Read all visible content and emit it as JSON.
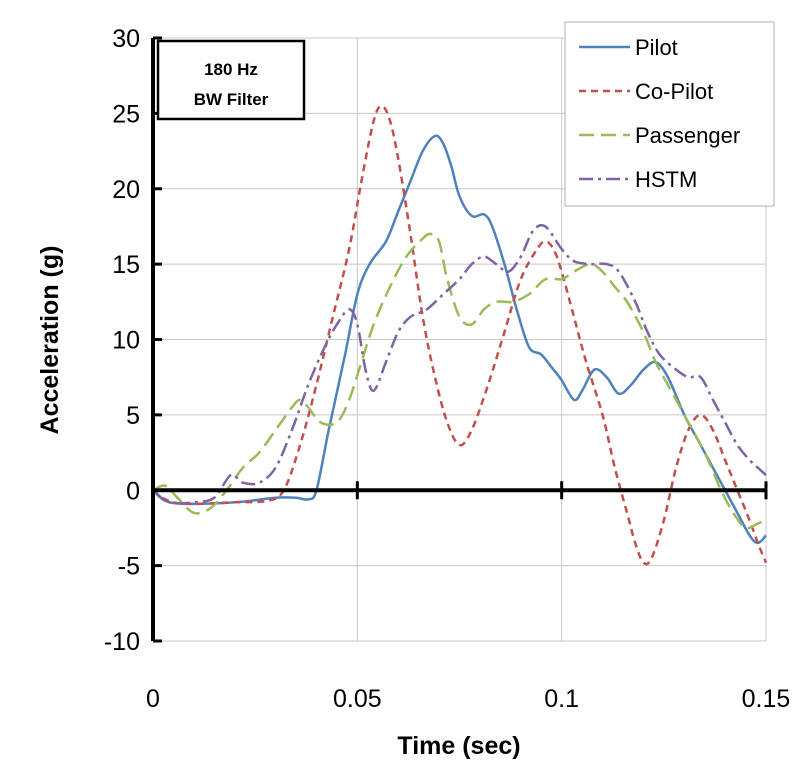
{
  "chart_data": {
    "type": "line",
    "title": "",
    "xlabel": "Time (sec)",
    "ylabel": "Acceleration (g)",
    "xlim": [
      0,
      0.15
    ],
    "ylim": [
      -10,
      30
    ],
    "x_ticks": [
      0,
      0.05,
      0.1,
      0.15
    ],
    "x_tick_labels": [
      "0",
      "0.05",
      "0.1",
      "0.15"
    ],
    "y_ticks": [
      -10,
      -5,
      0,
      5,
      10,
      15,
      20,
      25,
      30
    ],
    "y_tick_labels": [
      "-10",
      "-5",
      "0",
      "5",
      "10",
      "15",
      "20",
      "25",
      "30"
    ],
    "grid": true,
    "legend_position": "top-right",
    "annotation": {
      "lines": [
        "180 Hz",
        "BW Filter"
      ]
    },
    "series": [
      {
        "name": "Pilot",
        "color": "#4f81bd",
        "dash": "solid",
        "points": [
          [
            0,
            0
          ],
          [
            0.003,
            -0.7
          ],
          [
            0.008,
            -0.9
          ],
          [
            0.02,
            -0.8
          ],
          [
            0.03,
            -0.5
          ],
          [
            0.035,
            -0.5
          ],
          [
            0.038,
            -0.6
          ],
          [
            0.04,
            0
          ],
          [
            0.043,
            4
          ],
          [
            0.047,
            9
          ],
          [
            0.05,
            13
          ],
          [
            0.053,
            15
          ],
          [
            0.057,
            16.5
          ],
          [
            0.06,
            18.5
          ],
          [
            0.063,
            20.5
          ],
          [
            0.066,
            22.5
          ],
          [
            0.069,
            23.5
          ],
          [
            0.071,
            23
          ],
          [
            0.073,
            21.5
          ],
          [
            0.075,
            19.5
          ],
          [
            0.078,
            18.2
          ],
          [
            0.081,
            18.3
          ],
          [
            0.083,
            17.5
          ],
          [
            0.086,
            15
          ],
          [
            0.089,
            12
          ],
          [
            0.092,
            9.5
          ],
          [
            0.095,
            9
          ],
          [
            0.098,
            8
          ],
          [
            0.1,
            7.3
          ],
          [
            0.103,
            6
          ],
          [
            0.105,
            6.6
          ],
          [
            0.108,
            8
          ],
          [
            0.111,
            7.5
          ],
          [
            0.114,
            6.4
          ],
          [
            0.117,
            7
          ],
          [
            0.12,
            8
          ],
          [
            0.123,
            8.5
          ],
          [
            0.126,
            7.5
          ],
          [
            0.13,
            5
          ],
          [
            0.133,
            3.5
          ],
          [
            0.136,
            2
          ],
          [
            0.14,
            0
          ],
          [
            0.143,
            -1.5
          ],
          [
            0.146,
            -3
          ],
          [
            0.148,
            -3.5
          ],
          [
            0.15,
            -3
          ]
        ]
      },
      {
        "name": "Co-Pilot",
        "color": "#c0504d",
        "dash": "dashed",
        "points": [
          [
            0,
            0
          ],
          [
            0.003,
            -0.6
          ],
          [
            0.008,
            -0.9
          ],
          [
            0.02,
            -0.8
          ],
          [
            0.028,
            -0.7
          ],
          [
            0.032,
            0
          ],
          [
            0.036,
            3
          ],
          [
            0.04,
            7
          ],
          [
            0.044,
            11.5
          ],
          [
            0.048,
            16
          ],
          [
            0.051,
            20.5
          ],
          [
            0.054,
            24.5
          ],
          [
            0.056,
            25.5
          ],
          [
            0.058,
            24.5
          ],
          [
            0.06,
            22
          ],
          [
            0.063,
            17
          ],
          [
            0.066,
            11.5
          ],
          [
            0.069,
            7.5
          ],
          [
            0.072,
            4.5
          ],
          [
            0.075,
            3
          ],
          [
            0.078,
            4
          ],
          [
            0.082,
            7
          ],
          [
            0.086,
            10.5
          ],
          [
            0.09,
            14
          ],
          [
            0.094,
            16
          ],
          [
            0.096,
            16.5
          ],
          [
            0.098,
            16
          ],
          [
            0.1,
            14.5
          ],
          [
            0.103,
            11.5
          ],
          [
            0.106,
            8.5
          ],
          [
            0.11,
            5
          ],
          [
            0.113,
            1.5
          ],
          [
            0.116,
            -1.5
          ],
          [
            0.118,
            -3.5
          ],
          [
            0.12,
            -4.8
          ],
          [
            0.122,
            -4.5
          ],
          [
            0.125,
            -2
          ],
          [
            0.128,
            1.5
          ],
          [
            0.131,
            4
          ],
          [
            0.134,
            5
          ],
          [
            0.137,
            4
          ],
          [
            0.14,
            2
          ],
          [
            0.143,
            0
          ],
          [
            0.146,
            -2
          ],
          [
            0.148,
            -3.5
          ],
          [
            0.15,
            -4.8
          ]
        ]
      },
      {
        "name": "Passenger",
        "color": "#9bbb59",
        "dash": "long-dash",
        "points": [
          [
            0,
            0
          ],
          [
            0.003,
            0.3
          ],
          [
            0.006,
            -0.5
          ],
          [
            0.01,
            -1.5
          ],
          [
            0.014,
            -1.2
          ],
          [
            0.018,
            0
          ],
          [
            0.022,
            1.5
          ],
          [
            0.026,
            2.5
          ],
          [
            0.03,
            4
          ],
          [
            0.034,
            5.5
          ],
          [
            0.036,
            6
          ],
          [
            0.038,
            5.5
          ],
          [
            0.041,
            4.5
          ],
          [
            0.045,
            4.5
          ],
          [
            0.048,
            6
          ],
          [
            0.051,
            8.5
          ],
          [
            0.054,
            11
          ],
          [
            0.058,
            13.5
          ],
          [
            0.062,
            15.5
          ],
          [
            0.066,
            16.7
          ],
          [
            0.068,
            17
          ],
          [
            0.07,
            16.5
          ],
          [
            0.072,
            14
          ],
          [
            0.075,
            11.5
          ],
          [
            0.078,
            11
          ],
          [
            0.081,
            12
          ],
          [
            0.084,
            12.5
          ],
          [
            0.088,
            12.5
          ],
          [
            0.092,
            13
          ],
          [
            0.096,
            14
          ],
          [
            0.1,
            14
          ],
          [
            0.103,
            14.5
          ],
          [
            0.107,
            15
          ],
          [
            0.11,
            14.5
          ],
          [
            0.113,
            13.5
          ],
          [
            0.116,
            12.5
          ],
          [
            0.12,
            10.5
          ],
          [
            0.123,
            8.5
          ],
          [
            0.127,
            6.5
          ],
          [
            0.131,
            4.5
          ],
          [
            0.135,
            2.5
          ],
          [
            0.139,
            0
          ],
          [
            0.142,
            -1.5
          ],
          [
            0.145,
            -2.5
          ],
          [
            0.148,
            -2.2
          ],
          [
            0.15,
            -2
          ]
        ]
      },
      {
        "name": "HSTM",
        "color": "#8064a2",
        "dash": "dash-dot",
        "points": [
          [
            0,
            0
          ],
          [
            0.004,
            -0.8
          ],
          [
            0.01,
            -0.8
          ],
          [
            0.015,
            -0.5
          ],
          [
            0.019,
            1
          ],
          [
            0.022,
            0.5
          ],
          [
            0.026,
            0.5
          ],
          [
            0.03,
            1.5
          ],
          [
            0.034,
            4
          ],
          [
            0.038,
            7
          ],
          [
            0.042,
            9.5
          ],
          [
            0.045,
            11
          ],
          [
            0.048,
            12
          ],
          [
            0.05,
            11
          ],
          [
            0.052,
            8
          ],
          [
            0.054,
            6.6
          ],
          [
            0.057,
            8.5
          ],
          [
            0.06,
            10.5
          ],
          [
            0.063,
            11.5
          ],
          [
            0.067,
            12
          ],
          [
            0.071,
            13
          ],
          [
            0.075,
            14
          ],
          [
            0.078,
            15
          ],
          [
            0.081,
            15.5
          ],
          [
            0.084,
            15
          ],
          [
            0.087,
            14.5
          ],
          [
            0.09,
            15.5
          ],
          [
            0.093,
            17.2
          ],
          [
            0.096,
            17.5
          ],
          [
            0.1,
            16
          ],
          [
            0.103,
            15.2
          ],
          [
            0.107,
            15
          ],
          [
            0.111,
            15
          ],
          [
            0.114,
            14.5
          ],
          [
            0.118,
            12.5
          ],
          [
            0.121,
            10.5
          ],
          [
            0.124,
            9
          ],
          [
            0.128,
            8
          ],
          [
            0.131,
            7.5
          ],
          [
            0.134,
            7.5
          ],
          [
            0.137,
            6
          ],
          [
            0.14,
            4.5
          ],
          [
            0.143,
            3
          ],
          [
            0.146,
            2
          ],
          [
            0.148,
            1.5
          ],
          [
            0.15,
            1
          ]
        ]
      }
    ]
  }
}
